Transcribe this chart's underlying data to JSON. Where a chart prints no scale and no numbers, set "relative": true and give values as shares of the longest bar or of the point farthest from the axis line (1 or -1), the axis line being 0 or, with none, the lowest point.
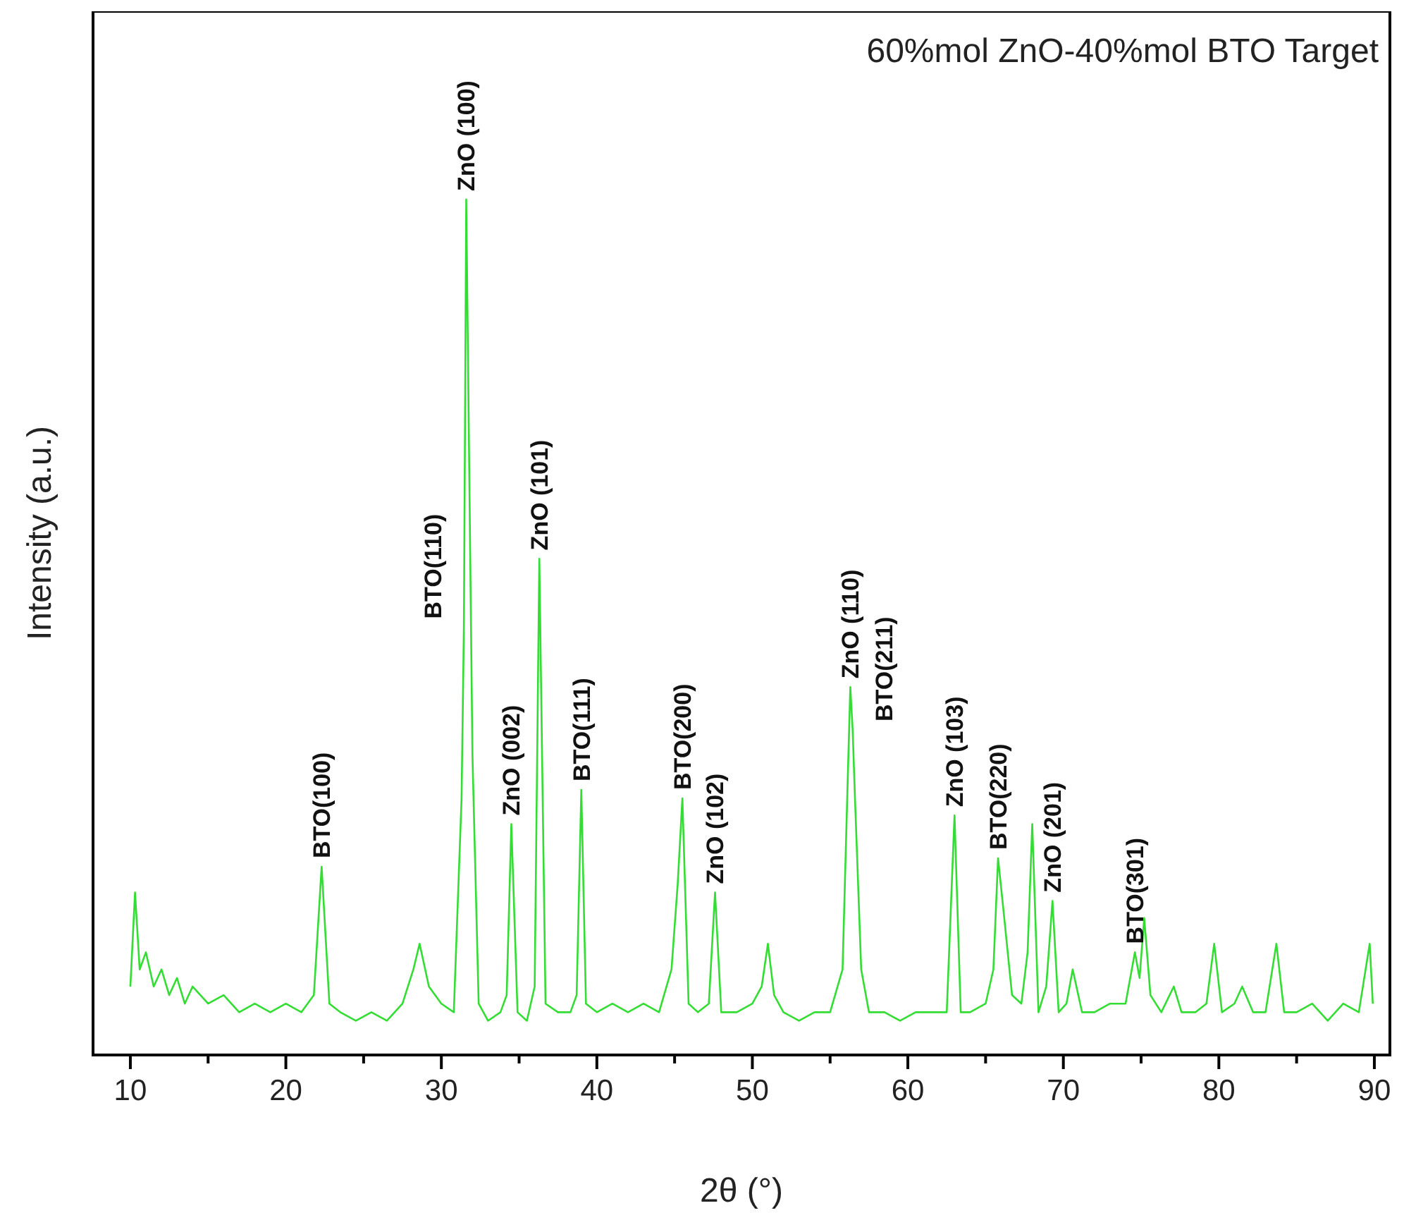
{
  "chart_data": {
    "type": "line",
    "title": "60%mol ZnO-40%mol BTO Target",
    "xlabel": "2θ (°)",
    "ylabel": "Intensity (a.u.)",
    "relative": true,
    "xlim": [
      7.6,
      91
    ],
    "xticks": [
      10,
      {
        "value": 15,
        "label": null
      },
      20,
      {
        "value": 25,
        "label": null
      },
      30,
      {
        "value": 35,
        "label": null
      },
      40,
      {
        "value": 45,
        "label": null
      },
      50,
      {
        "value": 55,
        "label": null
      },
      60,
      {
        "value": 65,
        "label": null
      },
      70,
      {
        "value": 75,
        "label": null
      },
      80,
      {
        "value": 85,
        "label": null
      },
      90
    ],
    "x": [
      10,
      10.3,
      10.6,
      11,
      11.5,
      12,
      12.5,
      13,
      13.5,
      14,
      15,
      16,
      17,
      18,
      19,
      20,
      21,
      21.8,
      22.3,
      22.8,
      23.5,
      24.5,
      25.5,
      26.5,
      27.5,
      28.2,
      28.6,
      29.2,
      30,
      30.8,
      31.3,
      31.45,
      31.6,
      32.0,
      32.4,
      33,
      33.8,
      34.2,
      34.5,
      34.9,
      35.5,
      36.0,
      36.3,
      36.7,
      37.5,
      38.3,
      38.7,
      39.0,
      39.3,
      40,
      41,
      42,
      43,
      44,
      44.8,
      45.2,
      45.5,
      45.9,
      46.5,
      47.2,
      47.6,
      48.0,
      49,
      50,
      50.6,
      51.0,
      51.4,
      52,
      53,
      54,
      55,
      55.8,
      56.1,
      56.3,
      56.45,
      56.6,
      57.0,
      57.5,
      58.5,
      59.5,
      60.5,
      61.5,
      62.5,
      63.0,
      63.4,
      64,
      65,
      65.5,
      65.8,
      66.2,
      66.7,
      67.3,
      67.7,
      68.0,
      68.4,
      68.9,
      69.3,
      69.7,
      70.2,
      70.6,
      71.2,
      72,
      73,
      74,
      74.6,
      74.9,
      75.2,
      75.6,
      76.3,
      77.1,
      77.6,
      78.5,
      79.2,
      79.7,
      80.2,
      81,
      81.5,
      82.2,
      83,
      83.7,
      84.2,
      85,
      86,
      87,
      88,
      89,
      89.7,
      89.9
    ],
    "series": [
      {
        "color": "#33dd33",
        "values": [
          0.08,
          0.19,
          0.1,
          0.12,
          0.08,
          0.1,
          0.07,
          0.09,
          0.06,
          0.08,
          0.06,
          0.07,
          0.05,
          0.06,
          0.05,
          0.06,
          0.05,
          0.07,
          0.22,
          0.06,
          0.05,
          0.04,
          0.05,
          0.04,
          0.06,
          0.1,
          0.13,
          0.08,
          0.06,
          0.05,
          0.3,
          0.5,
          1,
          0.35,
          0.06,
          0.04,
          0.05,
          0.07,
          0.27,
          0.05,
          0.04,
          0.08,
          0.58,
          0.06,
          0.05,
          0.05,
          0.07,
          0.31,
          0.06,
          0.05,
          0.06,
          0.05,
          0.06,
          0.05,
          0.1,
          0.2,
          0.3,
          0.06,
          0.05,
          0.06,
          0.19,
          0.05,
          0.05,
          0.06,
          0.08,
          0.13,
          0.07,
          0.05,
          0.04,
          0.05,
          0.05,
          0.1,
          0.3,
          0.43,
          0.38,
          0.3,
          0.1,
          0.05,
          0.05,
          0.04,
          0.05,
          0.05,
          0.05,
          0.28,
          0.05,
          0.05,
          0.06,
          0.1,
          0.23,
          0.16,
          0.07,
          0.06,
          0.12,
          0.27,
          0.05,
          0.08,
          0.18,
          0.05,
          0.06,
          0.1,
          0.05,
          0.05,
          0.06,
          0.06,
          0.12,
          0.09,
          0.16,
          0.07,
          0.05,
          0.08,
          0.05,
          0.05,
          0.06,
          0.13,
          0.05,
          0.06,
          0.08,
          0.05,
          0.05,
          0.13,
          0.05,
          0.05,
          0.06,
          0.04,
          0.06,
          0.05,
          0.13,
          0.06
        ]
      }
    ],
    "annotations": [
      {
        "text": "BTO(100)",
        "x": 22.3,
        "y": 0.22
      },
      {
        "text": "BTO(110)",
        "x": 31.45,
        "y": 0.5
      },
      {
        "text": "ZnO (100)",
        "x": 31.6,
        "y": 1
      },
      {
        "text": "ZnO (002)",
        "x": 34.5,
        "y": 0.27
      },
      {
        "text": "ZnO (101)",
        "x": 36.3,
        "y": 0.58
      },
      {
        "text": "BTO(111)",
        "x": 39.0,
        "y": 0.31
      },
      {
        "text": "BTO(200)",
        "x": 45.5,
        "y": 0.3
      },
      {
        "text": "ZnO (102)",
        "x": 47.6,
        "y": 0.19
      },
      {
        "text": "ZnO (110)",
        "x": 56.3,
        "y": 0.43
      },
      {
        "text": "BTO(211)",
        "x": 56.45,
        "y": 0.38
      },
      {
        "text": "ZnO (103)",
        "x": 63.0,
        "y": 0.28
      },
      {
        "text": "BTO(220)",
        "x": 65.8,
        "y": 0.23
      },
      {
        "text": "ZnO (201)",
        "x": 69.3,
        "y": 0.18
      },
      {
        "text": "BTO(301)",
        "x": 74.6,
        "y": 0.12
      }
    ]
  }
}
